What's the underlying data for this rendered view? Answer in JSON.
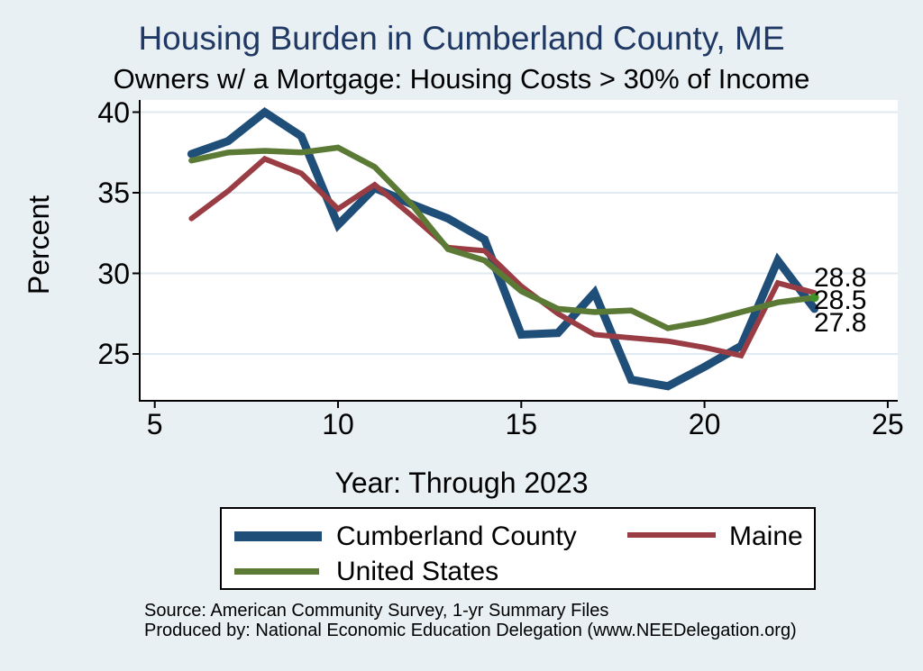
{
  "title": "Housing Burden in Cumberland County, ME",
  "subtitle": "Owners w/ a Mortgage: Housing Costs > 30% of Income",
  "chart_data": {
    "type": "line",
    "x": [
      6,
      7,
      8,
      9,
      10,
      11,
      12,
      13,
      14,
      15,
      16,
      17,
      18,
      19,
      20,
      21,
      22,
      23
    ],
    "xticks": [
      5,
      10,
      15,
      20,
      25
    ],
    "yticks": [
      40,
      35,
      30,
      25
    ],
    "xlim": [
      4.6,
      25.3
    ],
    "ylim": [
      22.1,
      40.75
    ],
    "xlabel": "Year: Through 2023",
    "ylabel": "Percent",
    "grid": "horizontal",
    "legend_position": "bottom",
    "series": [
      {
        "name": "Cumberland County",
        "color": "#1f4e79",
        "width": 9,
        "values": [
          37.4,
          38.2,
          40.0,
          38.5,
          33.0,
          35.3,
          34.3,
          33.4,
          32.1,
          26.2,
          26.3,
          28.8,
          23.4,
          23.0,
          24.2,
          25.5,
          30.8,
          27.8
        ]
      },
      {
        "name": "Maine",
        "color": "#9a3c44",
        "width": 6,
        "values": [
          33.4,
          35.1,
          37.1,
          36.2,
          34.0,
          35.5,
          33.6,
          31.6,
          31.4,
          29.2,
          27.5,
          26.2,
          26.0,
          25.8,
          25.4,
          24.9,
          29.4,
          28.8
        ]
      },
      {
        "name": "United States",
        "color": "#5b7a35",
        "width": 6.5,
        "values": [
          37.0,
          37.5,
          37.6,
          37.5,
          37.8,
          36.6,
          34.3,
          31.5,
          30.8,
          28.9,
          27.8,
          27.6,
          27.7,
          26.6,
          27.0,
          27.6,
          28.2,
          28.5
        ]
      }
    ],
    "end_labels": [
      {
        "text": "28.8",
        "series": "Maine"
      },
      {
        "text": "28.5",
        "series": "United States"
      },
      {
        "text": "27.8",
        "series": "Cumberland County"
      }
    ],
    "end_dot": {
      "series": "United States",
      "color": "#3f9125"
    }
  },
  "legend": {
    "items": [
      {
        "label": "Cumberland County",
        "color": "#1f4e79",
        "thickness": 11
      },
      {
        "label": "Maine",
        "color": "#9a3c44",
        "thickness": 6
      },
      {
        "label": "United States",
        "color": "#5b7a35",
        "thickness": 7
      }
    ]
  },
  "footer": {
    "line1": "Source: American Community Survey, 1-yr Summary Files",
    "line2": "Produced by: National Economic Education Delegation (www.NEEDelegation.org)"
  },
  "colors": {
    "canvas_background": "#e8f0f3",
    "plot_background": "#ffffff",
    "gridline": "#dfeaf2",
    "axis": "#000000",
    "title": "#1f3864"
  }
}
